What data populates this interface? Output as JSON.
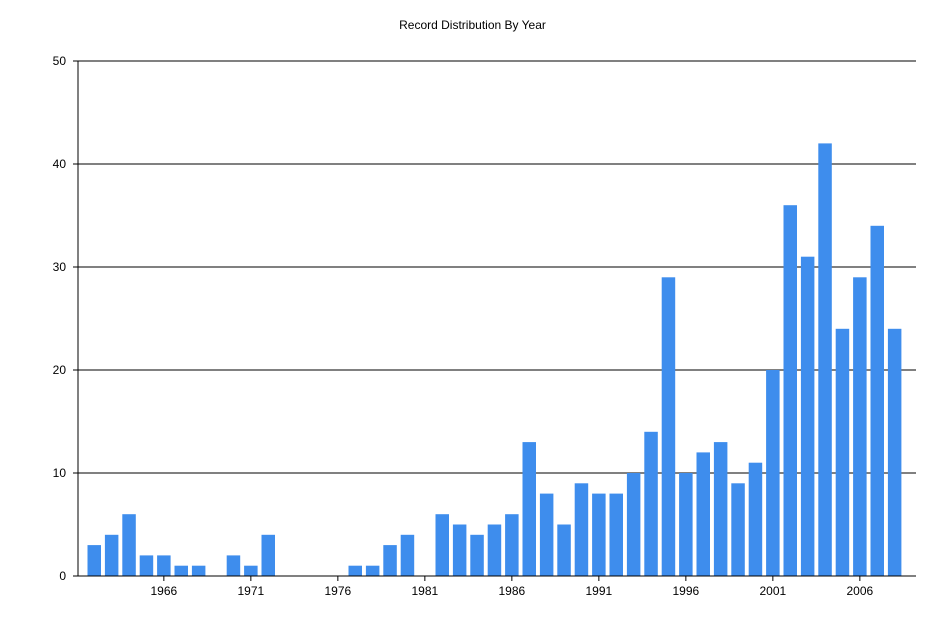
{
  "chart_data": {
    "type": "bar",
    "title": "Record Distribution By Year",
    "xlabel": "",
    "ylabel": "",
    "ylim": [
      0,
      50
    ],
    "yticks": [
      0,
      10,
      20,
      30,
      40,
      50
    ],
    "xtick_labels": [
      "1966",
      "1971",
      "1976",
      "1981",
      "1986",
      "1991",
      "1996",
      "2001",
      "2006"
    ],
    "grid": "horizontal",
    "bar_color": "#3e8ded",
    "categories": [
      "1962",
      "1963",
      "1964",
      "1965",
      "1966",
      "1967",
      "1968",
      "1969",
      "1970",
      "1971",
      "1972",
      "1973",
      "1974",
      "1975",
      "1976",
      "1977",
      "1978",
      "1979",
      "1980",
      "1981",
      "1982",
      "1983",
      "1984",
      "1985",
      "1986",
      "1987",
      "1988",
      "1989",
      "1990",
      "1991",
      "1992",
      "1993",
      "1994",
      "1995",
      "1996",
      "1997",
      "1998",
      "1999",
      "2000",
      "2001",
      "2002",
      "2003",
      "2004",
      "2005",
      "2006",
      "2007",
      "2008"
    ],
    "values": [
      3,
      4,
      6,
      2,
      2,
      1,
      1,
      0,
      2,
      1,
      4,
      0,
      0,
      0,
      0,
      1,
      1,
      3,
      4,
      0,
      6,
      5,
      4,
      5,
      6,
      13,
      8,
      5,
      9,
      8,
      8,
      10,
      14,
      29,
      10,
      12,
      13,
      9,
      11,
      20,
      36,
      31,
      42,
      24,
      29,
      34,
      24
    ]
  }
}
